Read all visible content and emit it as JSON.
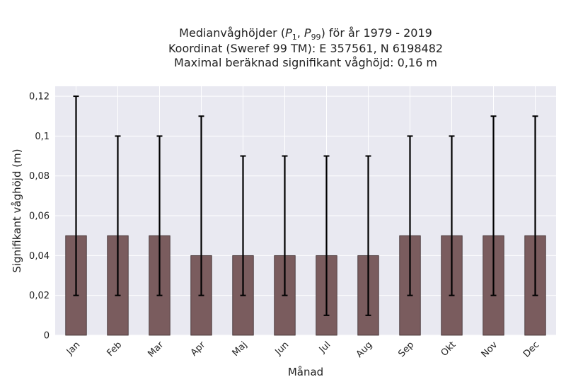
{
  "chart_data": {
    "type": "bar",
    "title_lines": [
      "Medianvåghöjder (P1, P99) för år 1979 - 2019",
      "Koordinat (Sweref 99 TM): E 357561, N 6198482",
      "Maximal beräknad signifikant våghöjd: 0,16 m"
    ],
    "xlabel": "Månad",
    "ylabel": "Signifikant våghöjd (m)",
    "categories": [
      "Jan",
      "Feb",
      "Mar",
      "Apr",
      "Maj",
      "Jun",
      "Jul",
      "Aug",
      "Sep",
      "Okt",
      "Nov",
      "Dec"
    ],
    "series": [
      {
        "values": [
          0.05,
          0.05,
          0.05,
          0.04,
          0.04,
          0.04,
          0.04,
          0.04,
          0.05,
          0.05,
          0.05,
          0.05
        ],
        "lower": [
          0.02,
          0.02,
          0.02,
          0.02,
          0.02,
          0.02,
          0.01,
          0.01,
          0.02,
          0.02,
          0.02,
          0.02
        ],
        "upper": [
          0.12,
          0.1,
          0.1,
          0.11,
          0.09,
          0.09,
          0.09,
          0.09,
          0.1,
          0.1,
          0.11,
          0.11
        ]
      }
    ],
    "ylim": [
      0,
      0.125
    ],
    "yticks": [
      0,
      0.02,
      0.04,
      0.06,
      0.08,
      0.1,
      0.12
    ],
    "ytick_labels": [
      "0",
      "0,02",
      "0,04",
      "0,06",
      "0,08",
      "0,1",
      "0,12"
    ],
    "grid": true,
    "colors": {
      "bar": "#7a5c5e",
      "bar_edge": "#3a2a2b",
      "errorbar": "#000000",
      "plot_background": "#e9e9f1",
      "grid": "#ffffff"
    }
  }
}
